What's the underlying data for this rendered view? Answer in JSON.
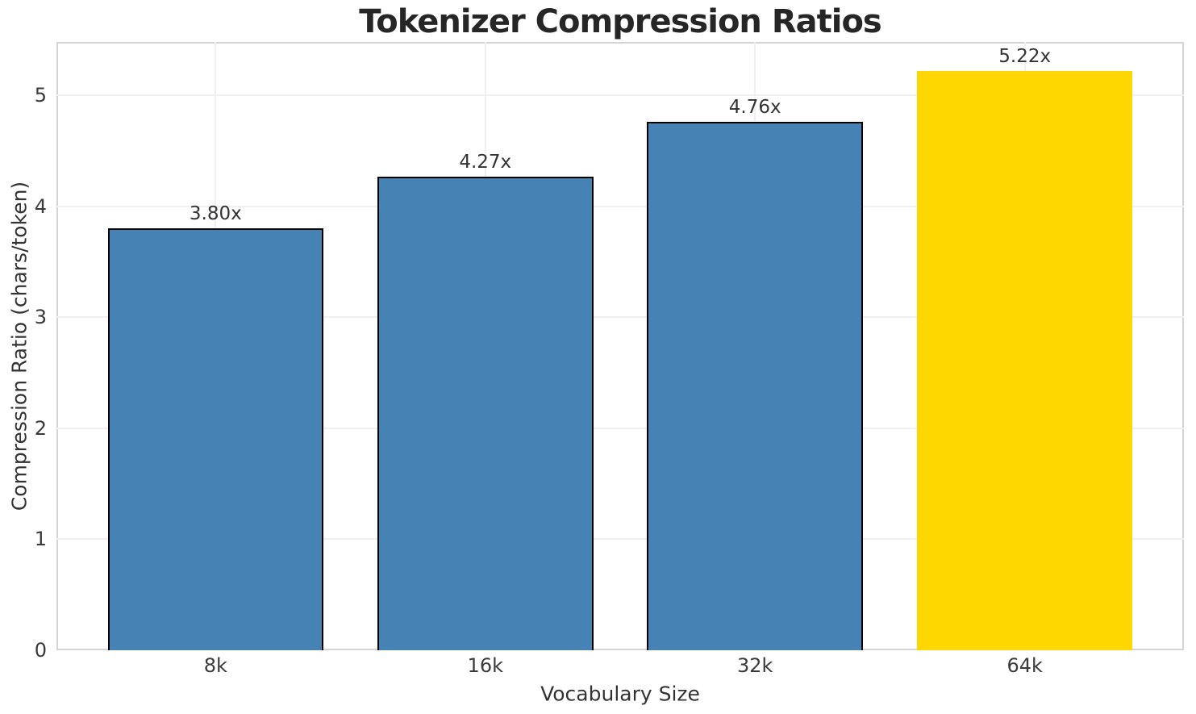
{
  "chart_data": {
    "type": "bar",
    "title": "Tokenizer Compression Ratios",
    "xlabel": "Vocabulary Size",
    "ylabel": "Compression Ratio (chars/token)",
    "categories": [
      "8k",
      "16k",
      "32k",
      "64k"
    ],
    "values": [
      3.8,
      4.27,
      4.76,
      5.22
    ],
    "bar_labels": [
      "3.80x",
      "4.27x",
      "4.76x",
      "5.22x"
    ],
    "bar_colors": [
      "#4682B4",
      "#4682B4",
      "#4682B4",
      "#FFD700"
    ],
    "bar_edge_colors": [
      "#000000",
      "#000000",
      "#000000",
      "none"
    ],
    "highlighted_category": "64k",
    "yticks": [
      0,
      1,
      2,
      3,
      4,
      5
    ],
    "ylim": [
      0,
      5.481
    ],
    "bar_width_units": 0.8,
    "grid": true,
    "legend": "none",
    "style": {
      "accent_blue": "#4682B4",
      "highlight_gold": "#FFD700",
      "grid_color": "#f0f0f0",
      "spine_color": "#d4d4d4",
      "title_color": "#262626",
      "text_color": "#3a3a3a"
    }
  }
}
